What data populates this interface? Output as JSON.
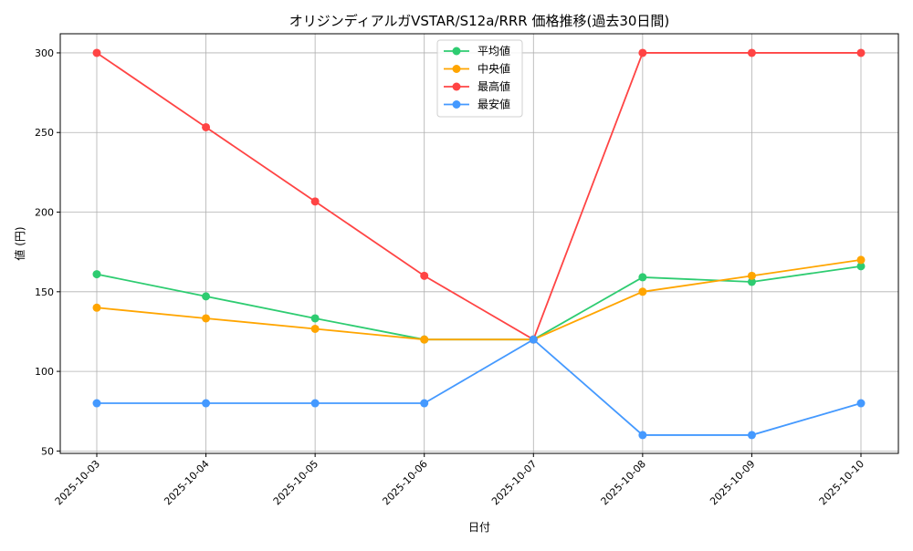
{
  "chart_data": {
    "type": "line",
    "title": "オリジンディアルガVSTAR/S12a/RRR 価格推移(過去30日間)",
    "xlabel": "日付",
    "ylabel": "値 (円)",
    "categories": [
      "2025-10-03",
      "2025-10-04",
      "2025-10-05",
      "2025-10-06",
      "2025-10-07",
      "2025-10-08",
      "2025-10-09",
      "2025-10-10"
    ],
    "ylim": [
      48.5,
      312
    ],
    "yticks": [
      50,
      100,
      150,
      200,
      250,
      300
    ],
    "grid": true,
    "legend_position": "top-center",
    "series": [
      {
        "name": "平均値",
        "color": "#2ecc71",
        "values": [
          161,
          147.1,
          133.3,
          120,
          120,
          159.1,
          156.2,
          166
        ]
      },
      {
        "name": "中央値",
        "color": "#ffa500",
        "values": [
          140,
          133.3,
          126.7,
          120,
          120,
          150,
          160,
          170
        ]
      },
      {
        "name": "最高値",
        "color": "#ff4444",
        "values": [
          300,
          253.3,
          206.7,
          160,
          120,
          300,
          300,
          300
        ]
      },
      {
        "name": "最安値",
        "color": "#4499ff",
        "values": [
          80,
          80,
          80,
          80,
          120,
          60,
          60,
          80
        ]
      }
    ]
  }
}
